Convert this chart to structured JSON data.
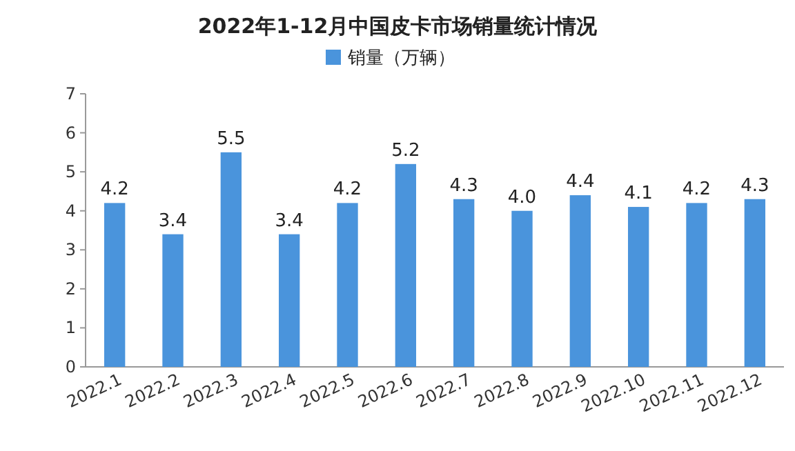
{
  "chart_data": {
    "type": "bar",
    "title": "2022年1-12月中国皮卡市场销量统计情况",
    "legend": "top",
    "categories": [
      "2022.1",
      "2022.2",
      "2022.3",
      "2022.4",
      "2022.5",
      "2022.6",
      "2022.7",
      "2022.8",
      "2022.9",
      "2022.10",
      "2022.11",
      "2022.12"
    ],
    "series": [
      {
        "name": "销量（万辆）",
        "color": "#4a94dc",
        "values": [
          4.2,
          3.4,
          5.5,
          3.4,
          4.2,
          5.2,
          4.3,
          4.0,
          4.4,
          4.1,
          4.2,
          4.3
        ],
        "value_labels": [
          "4.2",
          "3.4",
          "5.5",
          "3.4",
          "4.2",
          "5.2",
          "4.3",
          "4.0",
          "4.4",
          "4.1",
          "4.2",
          "4.3"
        ]
      }
    ],
    "ylim": [
      0,
      7
    ],
    "yticks": [
      0,
      1,
      2,
      3,
      4,
      5,
      6,
      7
    ]
  }
}
